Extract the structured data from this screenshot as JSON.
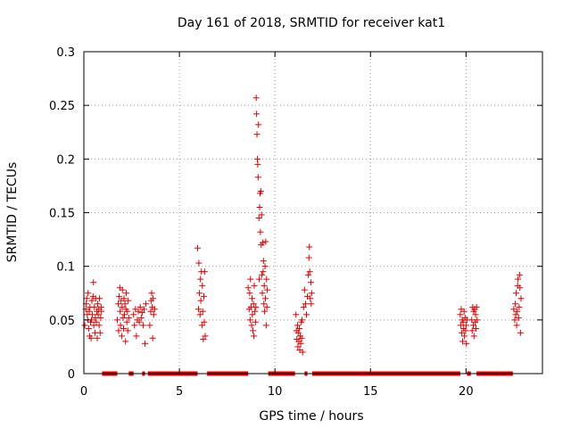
{
  "chart_data": {
    "type": "scatter",
    "title": "Day 161 of 2018, SRMTID for receiver kat1",
    "xlabel": "GPS time / hours",
    "ylabel": "SRMTID / TECUs",
    "xlim": [
      0,
      24
    ],
    "ylim": [
      0,
      0.3
    ],
    "xticks": [
      0,
      5,
      10,
      15,
      20
    ],
    "yticks": [
      0,
      0.05,
      0.1,
      0.15,
      0.2,
      0.25,
      0.3
    ],
    "xtick_labels": [
      "0",
      "5",
      "10",
      "15",
      "20"
    ],
    "ytick_labels": [
      "0",
      "0.05",
      "0.1",
      "0.15",
      "0.2",
      "0.25",
      "0.3"
    ],
    "grid": true,
    "marker": "+",
    "color": "#e00000",
    "series": [
      {
        "name": "SRMTID kat1",
        "points": [
          [
            0.05,
            0.045
          ],
          [
            0.1,
            0.06
          ],
          [
            0.12,
            0.065
          ],
          [
            0.15,
            0.07
          ],
          [
            0.18,
            0.055
          ],
          [
            0.2,
            0.05
          ],
          [
            0.22,
            0.075
          ],
          [
            0.25,
            0.042
          ],
          [
            0.28,
            0.058
          ],
          [
            0.3,
            0.035
          ],
          [
            0.32,
            0.062
          ],
          [
            0.35,
            0.048
          ],
          [
            0.38,
            0.033
          ],
          [
            0.4,
            0.05
          ],
          [
            0.42,
            0.068
          ],
          [
            0.45,
            0.055
          ],
          [
            0.48,
            0.072
          ],
          [
            0.5,
            0.085
          ],
          [
            0.52,
            0.045
          ],
          [
            0.55,
            0.062
          ],
          [
            0.58,
            0.038
          ],
          [
            0.6,
            0.052
          ],
          [
            0.62,
            0.07
          ],
          [
            0.65,
            0.048
          ],
          [
            0.68,
            0.058
          ],
          [
            0.7,
            0.033
          ],
          [
            0.72,
            0.065
          ],
          [
            0.75,
            0.055
          ],
          [
            0.78,
            0.06
          ],
          [
            0.8,
            0.045
          ],
          [
            0.82,
            0.07
          ],
          [
            0.85,
            0.038
          ],
          [
            0.88,
            0.052
          ],
          [
            0.9,
            0.062
          ],
          [
            0.92,
            0.058
          ],
          [
            1.75,
            0.05
          ],
          [
            1.8,
            0.065
          ],
          [
            1.82,
            0.04
          ],
          [
            1.85,
            0.072
          ],
          [
            1.88,
            0.08
          ],
          [
            1.9,
            0.058
          ],
          [
            1.92,
            0.045
          ],
          [
            1.95,
            0.068
          ],
          [
            1.98,
            0.035
          ],
          [
            2.0,
            0.062
          ],
          [
            2.02,
            0.078
          ],
          [
            2.05,
            0.052
          ],
          [
            2.08,
            0.042
          ],
          [
            2.1,
            0.07
          ],
          [
            2.12,
            0.055
          ],
          [
            2.15,
            0.065
          ],
          [
            2.18,
            0.03
          ],
          [
            2.2,
            0.06
          ],
          [
            2.22,
            0.075
          ],
          [
            2.25,
            0.048
          ],
          [
            2.28,
            0.058
          ],
          [
            2.3,
            0.04
          ],
          [
            2.32,
            0.068
          ],
          [
            2.35,
            0.052
          ],
          [
            2.6,
            0.055
          ],
          [
            2.65,
            0.045
          ],
          [
            2.7,
            0.06
          ],
          [
            2.75,
            0.035
          ],
          [
            2.8,
            0.05
          ],
          [
            2.85,
            0.058
          ],
          [
            2.9,
            0.048
          ],
          [
            2.95,
            0.062
          ],
          [
            3.0,
            0.052
          ],
          [
            3.05,
            0.057
          ],
          [
            3.1,
            0.045
          ],
          [
            3.15,
            0.06
          ],
          [
            3.2,
            0.028
          ],
          [
            3.25,
            0.065
          ],
          [
            3.45,
            0.045
          ],
          [
            3.5,
            0.058
          ],
          [
            3.52,
            0.068
          ],
          [
            3.55,
            0.075
          ],
          [
            3.58,
            0.062
          ],
          [
            3.6,
            0.033
          ],
          [
            3.62,
            0.07
          ],
          [
            3.65,
            0.055
          ],
          [
            3.7,
            0.06
          ],
          [
            5.95,
            0.117
          ],
          [
            6.0,
            0.06
          ],
          [
            6.02,
            0.103
          ],
          [
            6.05,
            0.075
          ],
          [
            6.08,
            0.055
          ],
          [
            6.1,
            0.088
          ],
          [
            6.12,
            0.068
          ],
          [
            6.15,
            0.095
          ],
          [
            6.18,
            0.045
          ],
          [
            6.2,
            0.082
          ],
          [
            6.22,
            0.058
          ],
          [
            6.25,
            0.032
          ],
          [
            6.28,
            0.072
          ],
          [
            6.3,
            0.048
          ],
          [
            6.32,
            0.095
          ],
          [
            6.35,
            0.035
          ],
          [
            8.6,
            0.08
          ],
          [
            8.65,
            0.06
          ],
          [
            8.68,
            0.075
          ],
          [
            8.7,
            0.05
          ],
          [
            8.72,
            0.088
          ],
          [
            8.75,
            0.062
          ],
          [
            8.78,
            0.045
          ],
          [
            8.8,
            0.07
          ],
          [
            8.82,
            0.055
          ],
          [
            8.85,
            0.04
          ],
          [
            8.88,
            0.065
          ],
          [
            8.9,
            0.035
          ],
          [
            8.92,
            0.082
          ],
          [
            8.95,
            0.058
          ],
          [
            8.98,
            0.048
          ],
          [
            9.0,
            0.062
          ],
          [
            9.02,
            0.257
          ],
          [
            9.04,
            0.242
          ],
          [
            9.06,
            0.223
          ],
          [
            9.08,
            0.2
          ],
          [
            9.1,
            0.195
          ],
          [
            9.12,
            0.183
          ],
          [
            9.14,
            0.232
          ],
          [
            9.16,
            0.145
          ],
          [
            9.18,
            0.088
          ],
          [
            9.2,
            0.155
          ],
          [
            9.22,
            0.168
          ],
          [
            9.24,
            0.132
          ],
          [
            9.26,
            0.17
          ],
          [
            9.28,
            0.12
          ],
          [
            9.3,
            0.148
          ],
          [
            9.32,
            0.092
          ],
          [
            9.34,
            0.075
          ],
          [
            9.36,
            0.122
          ],
          [
            9.38,
            0.095
          ],
          [
            9.4,
            0.105
          ],
          [
            9.42,
            0.065
          ],
          [
            9.44,
            0.082
          ],
          [
            9.46,
            0.058
          ],
          [
            9.48,
            0.1
          ],
          [
            9.5,
            0.07
          ],
          [
            9.52,
            0.123
          ],
          [
            9.54,
            0.045
          ],
          [
            9.56,
            0.088
          ],
          [
            9.58,
            0.062
          ],
          [
            9.6,
            0.078
          ],
          [
            11.1,
            0.055
          ],
          [
            11.12,
            0.04
          ],
          [
            11.15,
            0.032
          ],
          [
            11.18,
            0.045
          ],
          [
            11.2,
            0.025
          ],
          [
            11.22,
            0.038
          ],
          [
            11.25,
            0.03
          ],
          [
            11.28,
            0.042
          ],
          [
            11.3,
            0.022
          ],
          [
            11.32,
            0.035
          ],
          [
            11.35,
            0.028
          ],
          [
            11.38,
            0.048
          ],
          [
            11.4,
            0.033
          ],
          [
            11.42,
            0.05
          ],
          [
            11.45,
            0.02
          ],
          [
            11.5,
            0.062
          ],
          [
            11.55,
            0.078
          ],
          [
            11.6,
            0.065
          ],
          [
            11.65,
            0.055
          ],
          [
            11.7,
            0.072
          ],
          [
            11.75,
            0.092
          ],
          [
            11.78,
            0.108
          ],
          [
            11.8,
            0.118
          ],
          [
            11.82,
            0.095
          ],
          [
            11.85,
            0.07
          ],
          [
            11.88,
            0.085
          ],
          [
            11.9,
            0.065
          ],
          [
            11.92,
            0.075
          ],
          [
            19.7,
            0.055
          ],
          [
            19.72,
            0.045
          ],
          [
            19.75,
            0.06
          ],
          [
            19.78,
            0.038
          ],
          [
            19.8,
            0.05
          ],
          [
            19.82,
            0.03
          ],
          [
            19.85,
            0.048
          ],
          [
            19.88,
            0.042
          ],
          [
            19.9,
            0.058
          ],
          [
            19.92,
            0.035
          ],
          [
            19.95,
            0.052
          ],
          [
            19.98,
            0.04
          ],
          [
            20.0,
            0.045
          ],
          [
            20.02,
            0.028
          ],
          [
            20.05,
            0.05
          ],
          [
            20.3,
            0.05
          ],
          [
            20.32,
            0.04
          ],
          [
            20.35,
            0.062
          ],
          [
            20.38,
            0.045
          ],
          [
            20.4,
            0.058
          ],
          [
            20.42,
            0.035
          ],
          [
            20.45,
            0.06
          ],
          [
            20.48,
            0.048
          ],
          [
            20.5,
            0.055
          ],
          [
            20.52,
            0.042
          ],
          [
            20.55,
            0.062
          ],
          [
            20.58,
            0.05
          ],
          [
            22.5,
            0.06
          ],
          [
            22.55,
            0.05
          ],
          [
            22.58,
            0.065
          ],
          [
            22.6,
            0.055
          ],
          [
            22.62,
            0.075
          ],
          [
            22.65,
            0.045
          ],
          [
            22.68,
            0.058
          ],
          [
            22.7,
            0.082
          ],
          [
            22.72,
            0.088
          ],
          [
            22.75,
            0.052
          ],
          [
            22.78,
            0.062
          ],
          [
            22.8,
            0.092
          ],
          [
            22.82,
            0.08
          ],
          [
            22.85,
            0.038
          ],
          [
            22.88,
            0.07
          ]
        ],
        "zero_ranges_hours": [
          [
            0.95,
            1.75
          ],
          [
            2.35,
            2.6
          ],
          [
            3.05,
            3.2
          ],
          [
            3.35,
            5.95
          ],
          [
            6.45,
            8.6
          ],
          [
            9.65,
            11.05
          ],
          [
            11.55,
            11.7
          ],
          [
            11.95,
            19.7
          ],
          [
            20.05,
            20.25
          ],
          [
            20.55,
            22.45
          ]
        ]
      }
    ]
  }
}
